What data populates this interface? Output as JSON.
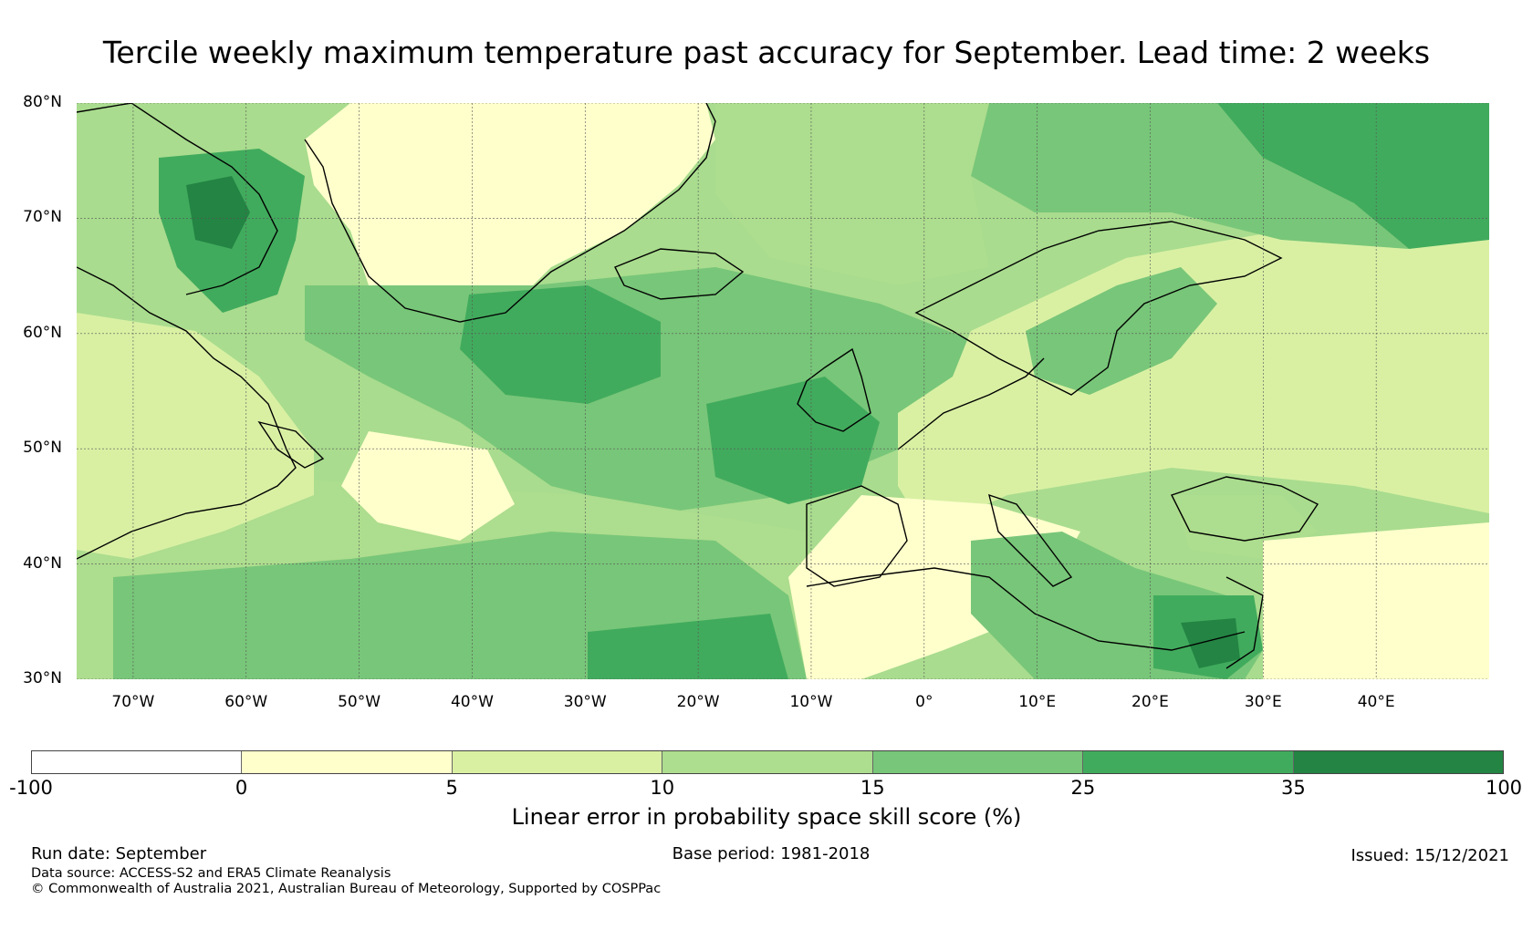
{
  "title": "Tercile weekly maximum temperature past accuracy for September. Lead time: 2 weeks",
  "map": {
    "lat_labels": [
      "80°N",
      "70°N",
      "60°N",
      "50°N",
      "40°N",
      "30°N"
    ],
    "lon_labels": [
      "70°W",
      "60°W",
      "50°W",
      "40°W",
      "30°W",
      "20°W",
      "10°W",
      "0°",
      "10°E",
      "20°E",
      "30°E",
      "40°E"
    ],
    "lon_range": [
      -75,
      50
    ],
    "lat_range": [
      30,
      80
    ],
    "colors": {
      "sea_base": "#a9dc8e",
      "coast": "#000000",
      "grid": "#555555"
    }
  },
  "colorbar": {
    "ticks": [
      "-100",
      "0",
      "5",
      "10",
      "15",
      "25",
      "35",
      "100"
    ],
    "colors": [
      "#ffffff",
      "#ffffcc",
      "#d9f0a3",
      "#addd8e",
      "#78c679",
      "#41ab5d",
      "#238443"
    ],
    "label": "Linear error in probability space skill score (%)"
  },
  "footer": {
    "run_date": "Run date: September",
    "base_period": "Base period: 1981-2018",
    "issued": "Issued: 15/12/2021",
    "data_source": "Data source: ACCESS-S2 and ERA5 Climate Reanalysis",
    "copyright": "© Commonwealth of Australia 2021, Australian Bureau of Meteorology, Supported by COSPPac"
  }
}
